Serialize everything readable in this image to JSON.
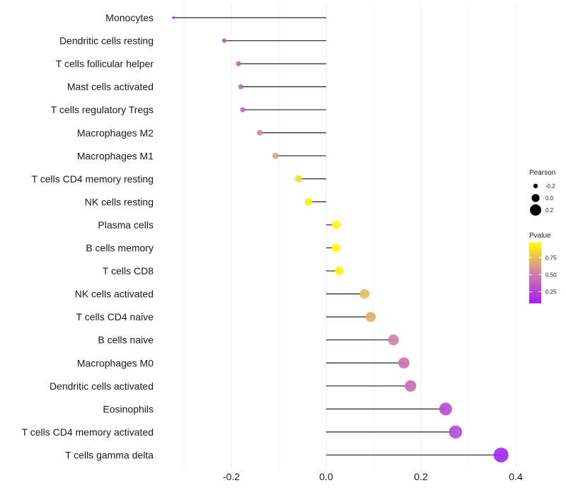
{
  "chart_data": {
    "type": "lollipop",
    "title": "",
    "xlabel": "",
    "ylabel": "",
    "xlim": [
      -0.35,
      0.43
    ],
    "x_ticks": [
      -0.2,
      0.0,
      0.2,
      0.4
    ],
    "x_tick_labels": [
      "-0.2",
      "0.0",
      "0.2",
      "0.4"
    ],
    "x_minor_ticks": [
      -0.3,
      -0.1,
      0.1,
      0.3
    ],
    "grid": true,
    "baseline": 0.0,
    "categories": [
      "Monocytes",
      "Dendritic cells resting",
      "T cells follicular helper",
      "Mast cells activated",
      "T cells regulatory  Tregs ",
      "Macrophages M2",
      "Macrophages M1",
      "T cells CD4 memory resting",
      "NK cells resting",
      "Plasma cells",
      "B cells memory",
      "T cells CD8",
      "NK cells activated",
      "T cells CD4 naive",
      "B cells naive",
      "Macrophages M0",
      "Dendritic cells activated",
      "Eosinophils",
      "T cells CD4 memory activated",
      "T cells gamma delta"
    ],
    "pearson": [
      -0.322,
      -0.215,
      -0.185,
      -0.18,
      -0.176,
      -0.14,
      -0.107,
      -0.058,
      -0.037,
      0.021,
      0.021,
      0.028,
      0.081,
      0.094,
      0.142,
      0.164,
      0.178,
      0.252,
      0.273,
      0.369
    ],
    "pvalue": [
      0.1,
      0.35,
      0.4,
      0.4,
      0.42,
      0.55,
      0.65,
      0.85,
      0.92,
      0.95,
      0.95,
      0.93,
      0.72,
      0.68,
      0.52,
      0.45,
      0.43,
      0.28,
      0.27,
      0.1
    ],
    "legend": {
      "placement": "right",
      "size": {
        "title": "Pearson",
        "breaks": [
          -0.2,
          0.0,
          0.2
        ],
        "labels": [
          "-0.2",
          "0.0",
          "0.2"
        ]
      },
      "color": {
        "title": "Pvalue",
        "range": [
          0.08,
          0.97
        ],
        "breaks": [
          0.25,
          0.5,
          0.75
        ],
        "labels": [
          "0.25",
          "0.50",
          "0.75"
        ],
        "low_color": "#A020F0",
        "high_color": "#FFFF00"
      }
    }
  }
}
